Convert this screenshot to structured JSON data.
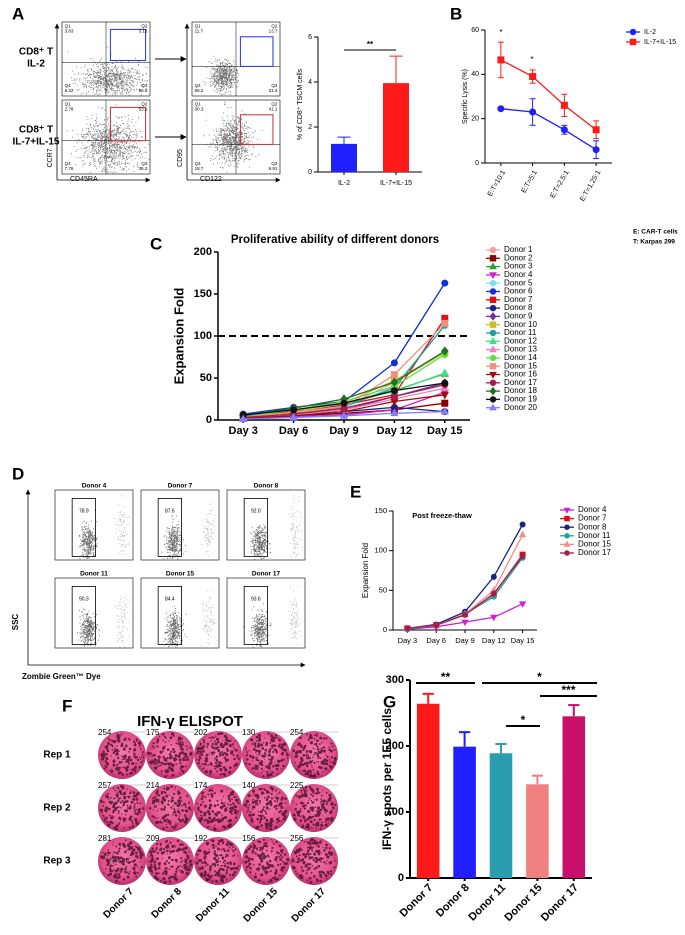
{
  "panel_labels": [
    "A",
    "B",
    "C",
    "D",
    "E",
    "F",
    "G"
  ],
  "flow_a": {
    "rows": [
      [
        "CD8⁺ T",
        "IL-2"
      ],
      [
        "CD8⁺ T",
        "IL-7+IL-15"
      ]
    ],
    "left_axes": {
      "x": "CD45RA",
      "y": "CCR7"
    },
    "right_axes": {
      "x": "CD122",
      "y": "CD95"
    },
    "plots": [
      [
        {
          "name": "Q1",
          "value": "3.83"
        },
        {
          "name": "Q2",
          "value": "3.18"
        },
        {
          "name": "Q4",
          "value": "6.22"
        },
        {
          "name": "Q3",
          "value": "86.8"
        }
      ],
      [
        {
          "name": "Q1",
          "value": "2.78"
        },
        {
          "name": "Q2",
          "value": "53.1"
        },
        {
          "name": "Q4",
          "value": "7.76"
        },
        {
          "name": "Q3",
          "value": "36.3"
        }
      ],
      [
        {
          "name": "Q1",
          "value": "11.7"
        },
        {
          "name": "Q2",
          "value": "13.7"
        },
        {
          "name": "Q4",
          "value": "65.2"
        },
        {
          "name": "Q3",
          "value": "21.4"
        }
      ],
      [
        {
          "name": "Q1",
          "value": "30.3"
        },
        {
          "name": "Q2",
          "value": "41.1"
        },
        {
          "name": "Q4",
          "value": "18.7"
        },
        {
          "name": "Q3",
          "value": "9.91"
        }
      ]
    ]
  },
  "flow_d": {
    "y_label": "SSC",
    "x_label": "Zombie Green™ Dye",
    "plots": [
      {
        "title": "Donor 4",
        "gate": "78.9"
      },
      {
        "title": "Donor 7",
        "gate": "87.6"
      },
      {
        "title": "Donor 8",
        "gate": "92.0"
      },
      {
        "title": "Donor 11",
        "gate": "90.3"
      },
      {
        "title": "Donor 15",
        "gate": "84.4"
      },
      {
        "title": "Donor 17",
        "gate": "93.6"
      }
    ]
  },
  "elispot": {
    "title": "IFN-γ ELISPOT",
    "rows": [
      "Rep 1",
      "Rep 2",
      "Rep 3"
    ],
    "columns": [
      "Donor 7",
      "Donor 8",
      "Donor 11",
      "Donor 15",
      "Donor 17"
    ],
    "counts": [
      [
        254,
        175,
        202,
        130,
        254
      ],
      [
        257,
        214,
        174,
        140,
        225
      ],
      [
        281,
        209,
        192,
        156,
        256
      ]
    ]
  },
  "chart_data": [
    {
      "type": "bar",
      "ylabel": "% of CD8⁺ TSCM cells",
      "categories": [
        "IL-2",
        "IL-7+IL-15"
      ],
      "values": [
        1.25,
        3.95
      ],
      "errors": [
        0.3,
        1.2
      ],
      "colors": [
        "#1f1fff",
        "#ff1a1a"
      ],
      "ylim": [
        0,
        6
      ],
      "yticks": [
        0,
        2,
        4,
        6
      ],
      "annotations": [
        "**"
      ]
    },
    {
      "type": "line",
      "ylabel": "Specific Lysis (%)",
      "categories": [
        "E:T=10:1",
        "E:T=5:1",
        "E:T=2.5:1",
        "E:T=1.25:1"
      ],
      "series": [
        {
          "name": "IL-2",
          "color": "#1f1fff",
          "marker": "circle",
          "values": [
            24.5,
            23,
            15,
            6
          ],
          "errors": [
            0.5,
            6,
            2,
            4
          ]
        },
        {
          "name": "IL-7+IL-15",
          "color": "#ff1a1a",
          "marker": "square",
          "values": [
            46.5,
            39,
            26,
            15
          ],
          "errors": [
            8,
            3,
            5,
            4
          ]
        }
      ],
      "ylim": [
        0,
        60
      ],
      "yticks": [
        0,
        20,
        40,
        60
      ],
      "annotations": [
        "*",
        "*"
      ],
      "notes": [
        "E: CAR-T cells",
        "T: Karpas 299"
      ]
    },
    {
      "type": "line",
      "title": "Proliferative ability of different donors",
      "ylabel": "Expansion Fold",
      "categories": [
        "Day 3",
        "Day 6",
        "Day 9",
        "Day 12",
        "Day 15"
      ],
      "reference_line": 100,
      "series": [
        {
          "name": "Donor 1",
          "color": "#f4a0a0",
          "marker": "circle",
          "values": [
            3,
            8,
            15,
            45,
            80
          ]
        },
        {
          "name": "Donor 2",
          "color": "#8b0000",
          "marker": "square",
          "values": [
            2,
            5,
            8,
            12,
            20
          ]
        },
        {
          "name": "Donor 3",
          "color": "#2ca02c",
          "marker": "triangle",
          "values": [
            4,
            10,
            18,
            35,
            55
          ]
        },
        {
          "name": "Donor 4",
          "color": "#d020d0",
          "marker": "triangle-down",
          "values": [
            2,
            4,
            6,
            12,
            33
          ]
        },
        {
          "name": "Donor 5",
          "color": "#80e0f0",
          "marker": "circle",
          "values": [
            3,
            8,
            15,
            40,
            112
          ]
        },
        {
          "name": "Donor 6",
          "color": "#1030d0",
          "marker": "circle",
          "values": [
            7,
            15,
            22,
            68,
            163
          ]
        },
        {
          "name": "Donor 7",
          "color": "#e01010",
          "marker": "square",
          "values": [
            5,
            10,
            18,
            30,
            121
          ]
        },
        {
          "name": "Donor 8",
          "color": "#1a237e",
          "marker": "circle",
          "values": [
            4,
            6,
            10,
            15,
            10
          ]
        },
        {
          "name": "Donor 9",
          "color": "#7a2a9a",
          "marker": "diamond",
          "values": [
            3,
            7,
            12,
            28,
            44
          ]
        },
        {
          "name": "Donor 10",
          "color": "#c8c020",
          "marker": "square",
          "values": [
            4,
            9,
            20,
            47,
            80
          ]
        },
        {
          "name": "Donor 11",
          "color": "#20a0a0",
          "marker": "circle",
          "values": [
            3,
            8,
            16,
            38,
            113
          ]
        },
        {
          "name": "Donor 12",
          "color": "#40e080",
          "marker": "triangle",
          "values": [
            4,
            12,
            20,
            34,
            56
          ]
        },
        {
          "name": "Donor 13",
          "color": "#f080c0",
          "marker": "triangle",
          "values": [
            2,
            6,
            12,
            25,
            38
          ]
        },
        {
          "name": "Donor 14",
          "color": "#60e040",
          "marker": "circle",
          "values": [
            5,
            12,
            22,
            40,
            78
          ]
        },
        {
          "name": "Donor 15",
          "color": "#f09080",
          "marker": "square",
          "values": [
            3,
            9,
            15,
            54,
            115
          ]
        },
        {
          "name": "Donor 16",
          "color": "#a01010",
          "marker": "triangle-down",
          "values": [
            2,
            5,
            10,
            22,
            30
          ]
        },
        {
          "name": "Donor 17",
          "color": "#a02050",
          "marker": "circle",
          "values": [
            3,
            7,
            14,
            28,
            42
          ]
        },
        {
          "name": "Donor 18",
          "color": "#207020",
          "marker": "diamond",
          "values": [
            5,
            14,
            25,
            45,
            82
          ]
        },
        {
          "name": "Donor 19",
          "color": "#111111",
          "marker": "circle",
          "values": [
            6,
            12,
            20,
            35,
            44
          ]
        },
        {
          "name": "Donor 20",
          "color": "#8080ff",
          "marker": "triangle",
          "values": [
            1,
            3,
            5,
            8,
            10
          ]
        }
      ],
      "ylim": [
        0,
        200
      ],
      "yticks": [
        0,
        50,
        100,
        150,
        200
      ]
    },
    {
      "type": "line",
      "title": "Post freeze-thaw",
      "ylabel": "Expansion Fold",
      "categories": [
        "Day 3",
        "Day 6",
        "Day 9",
        "Day 12",
        "Day 15"
      ],
      "series": [
        {
          "name": "Donor 4",
          "color": "#d020d0",
          "marker": "triangle-down",
          "values": [
            1,
            4,
            10,
            16,
            33
          ]
        },
        {
          "name": "Donor 7",
          "color": "#e01010",
          "marker": "square",
          "values": [
            2,
            6,
            20,
            45,
            95
          ]
        },
        {
          "name": "Donor 8",
          "color": "#1a237e",
          "marker": "circle",
          "values": [
            2,
            7,
            23,
            67,
            133
          ]
        },
        {
          "name": "Donor 11",
          "color": "#20a0a0",
          "marker": "circle",
          "values": [
            1,
            6,
            20,
            42,
            91
          ]
        },
        {
          "name": "Donor 15",
          "color": "#f09080",
          "marker": "triangle",
          "values": [
            2,
            6,
            20,
            50,
            120
          ]
        },
        {
          "name": "Donor 17",
          "color": "#a02050",
          "marker": "circle",
          "values": [
            2,
            6,
            19,
            46,
            93
          ]
        }
      ],
      "ylim": [
        0,
        150
      ],
      "yticks": [
        0,
        50,
        100,
        150
      ]
    },
    {
      "type": "bar",
      "ylabel": "IFN-γ spots per 1E5 cells",
      "categories": [
        "Donor 7",
        "Donor 8",
        "Donor 11",
        "Donor 15",
        "Donor 17"
      ],
      "values": [
        264,
        199,
        189,
        142,
        245
      ],
      "errors": [
        15,
        22,
        14,
        13,
        17
      ],
      "colors": [
        "#ff1a1a",
        "#1f1fff",
        "#2a9db0",
        "#f08080",
        "#c8106a"
      ],
      "ylim": [
        0,
        300
      ],
      "yticks": [
        0,
        100,
        200,
        300
      ],
      "annotations": [
        "**",
        "*",
        "***",
        "*"
      ]
    }
  ]
}
